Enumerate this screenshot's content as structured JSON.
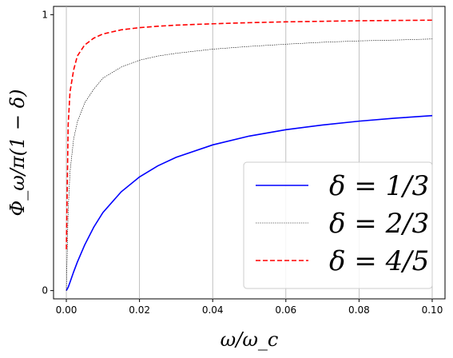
{
  "chart_data": {
    "type": "line",
    "xlabel": "ω/ω_c",
    "ylabel": "Φ_ω/π(1 − δ)",
    "xlim": [
      -0.0035,
      0.1035
    ],
    "ylim": [
      -0.03,
      1.03
    ],
    "x_ticks": [
      0.0,
      0.02,
      0.04,
      0.06,
      0.08,
      0.1
    ],
    "x_tick_labels": [
      "0.00",
      "0.02",
      "0.04",
      "0.06",
      "0.08",
      "0.10"
    ],
    "y_ticks": [
      0,
      1
    ],
    "y_tick_labels": [
      "0",
      "1"
    ],
    "grid": "vertical",
    "legend_placement": "lower-right",
    "x": [
      0.0,
      0.0005,
      0.001,
      0.002,
      0.003,
      0.005,
      0.0075,
      0.01,
      0.015,
      0.02,
      0.025,
      0.03,
      0.04,
      0.05,
      0.06,
      0.07,
      0.08,
      0.09,
      0.1
    ],
    "series": [
      {
        "name": "δ = 1/3",
        "color": "#0000ff",
        "style": "solid",
        "values": [
          0.0,
          0.012,
          0.03,
          0.068,
          0.103,
          0.165,
          0.23,
          0.283,
          0.358,
          0.412,
          0.452,
          0.483,
          0.528,
          0.56,
          0.583,
          0.6,
          0.614,
          0.625,
          0.634
        ]
      },
      {
        "name": "δ = 2/3",
        "color": "#000000",
        "style": "dotted",
        "values": [
          0.0,
          0.29,
          0.43,
          0.55,
          0.61,
          0.68,
          0.73,
          0.77,
          0.81,
          0.835,
          0.85,
          0.86,
          0.875,
          0.885,
          0.893,
          0.9,
          0.905,
          0.908,
          0.912
        ]
      },
      {
        "name": "δ = 4/5",
        "color": "#ff0000",
        "style": "dashed",
        "values": [
          0.15,
          0.6,
          0.72,
          0.8,
          0.85,
          0.89,
          0.915,
          0.93,
          0.945,
          0.953,
          0.958,
          0.962,
          0.967,
          0.971,
          0.974,
          0.976,
          0.978,
          0.979,
          0.98
        ]
      }
    ]
  }
}
